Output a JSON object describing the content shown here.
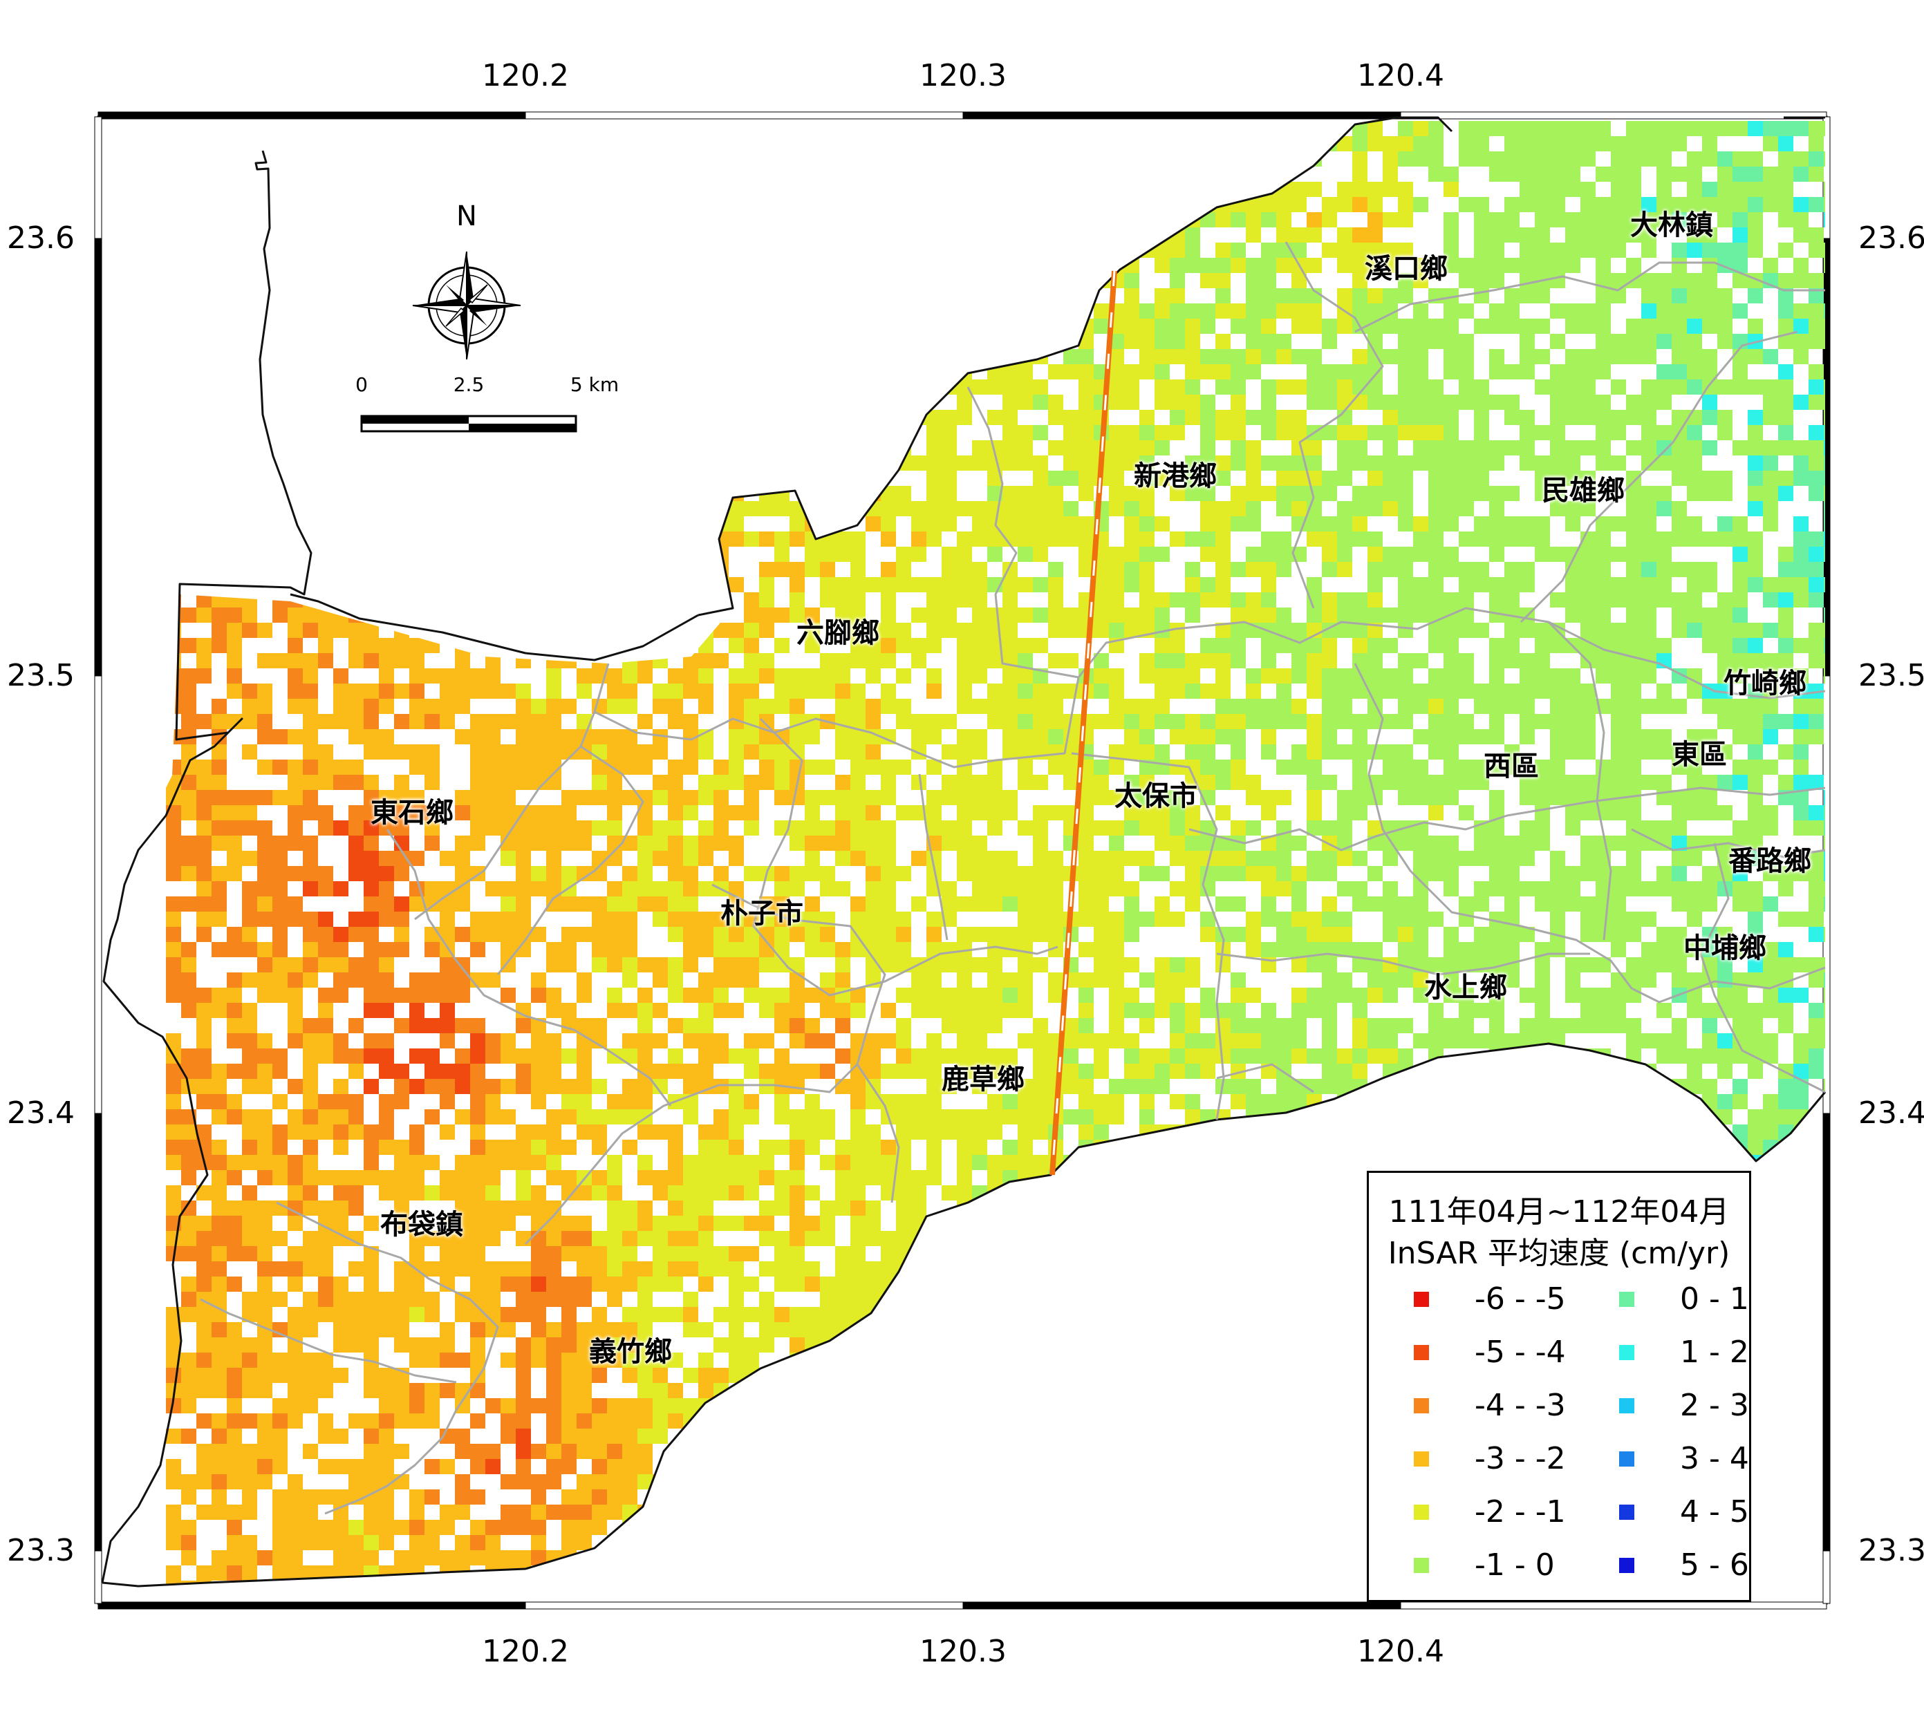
{
  "map": {
    "x_ticks": [
      "120.2",
      "120.3",
      "120.4"
    ],
    "y_ticks": [
      "23.6",
      "23.5",
      "23.4",
      "23.3"
    ],
    "north_label": "N",
    "scale_labels": [
      "0",
      "2.5",
      "5 km"
    ],
    "towns": [
      {
        "name": "大林鎮"
      },
      {
        "name": "溪口鄉"
      },
      {
        "name": "新港鄉"
      },
      {
        "name": "民雄鄉"
      },
      {
        "name": "六腳鄉"
      },
      {
        "name": "竹崎鄉"
      },
      {
        "name": "東石鄉"
      },
      {
        "name": "西區"
      },
      {
        "name": "東區"
      },
      {
        "name": "太保市"
      },
      {
        "name": "番路鄉"
      },
      {
        "name": "朴子市"
      },
      {
        "name": "中埔鄉"
      },
      {
        "name": "水上鄉"
      },
      {
        "name": "鹿草鄉"
      },
      {
        "name": "布袋鎮"
      },
      {
        "name": "義竹鄉"
      }
    ]
  },
  "legend": {
    "title_line1": "111年04月~112年04月",
    "title_line2": "InSAR 平均速度 (cm/yr)",
    "items": [
      {
        "label": "-6 - -5",
        "color": "#e8140c"
      },
      {
        "label": "-5 - -4",
        "color": "#f04a10"
      },
      {
        "label": "-4 - -3",
        "color": "#f6861c"
      },
      {
        "label": "-3 - -2",
        "color": "#fbbc1a"
      },
      {
        "label": "-2 - -1",
        "color": "#e1ec27"
      },
      {
        "label": "-1 - 0",
        "color": "#a5f25a"
      },
      {
        "label": "0 - 1",
        "color": "#6af0a0"
      },
      {
        "label": "1 - 2",
        "color": "#2ef2e8"
      },
      {
        "label": "2 - 3",
        "color": "#1cc6f2"
      },
      {
        "label": "3 - 4",
        "color": "#1a84ea"
      },
      {
        "label": "4 - 5",
        "color": "#1438e0"
      },
      {
        "label": "5 - 6",
        "color": "#0e14d8"
      }
    ]
  }
}
